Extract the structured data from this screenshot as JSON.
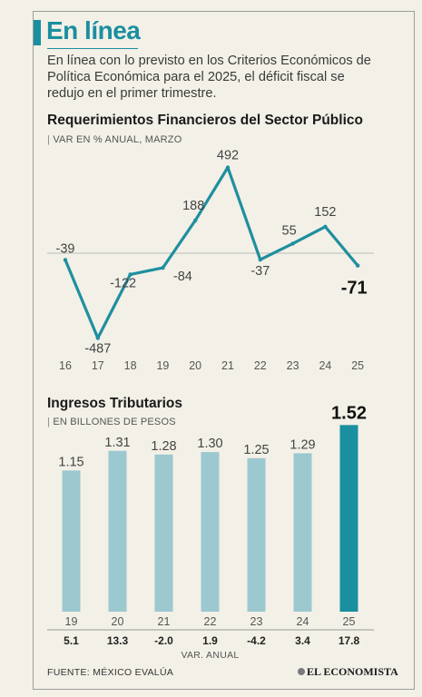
{
  "header": {
    "title": "En línea",
    "intro": "En línea con lo previsto en los Criterios Económicos de Política Económica para el 2025, el déficit fiscal se redujo en el primer trimestre."
  },
  "colors": {
    "accent": "#1a8fa0",
    "bar": "#9cc8d0",
    "bar_highlight": "#1a8fa0",
    "line": "#1f8f9e"
  },
  "chart_data": [
    {
      "type": "line",
      "title": "Requerimientos Financieros del Sector Público",
      "subtitle": "VAR EN % ANUAL, MARZO",
      "categories": [
        "16",
        "17",
        "18",
        "19",
        "20",
        "21",
        "22",
        "23",
        "24",
        "25"
      ],
      "values": [
        -39,
        -487,
        -122,
        -84,
        188,
        492,
        -37,
        55,
        152,
        -71
      ],
      "labels": [
        "-39",
        "-487",
        "-122",
        "-84",
        "188",
        "492",
        "-37",
        "55",
        "152",
        "-71"
      ],
      "highlight_index": 9,
      "baseline": 0
    },
    {
      "type": "bar",
      "title": "Ingresos Tributarios",
      "subtitle": "EN BILLONES DE PESOS",
      "categories": [
        "19",
        "20",
        "21",
        "22",
        "23",
        "24",
        "25"
      ],
      "values": [
        1.15,
        1.31,
        1.28,
        1.3,
        1.25,
        1.29,
        1.52
      ],
      "labels": [
        "1.15",
        "1.31",
        "1.28",
        "1.30",
        "1.25",
        "1.29",
        "1.52"
      ],
      "highlight_index": 6,
      "secondary_row": {
        "label": "VAR. ANUAL",
        "values": [
          "5.1",
          "13.3",
          "-2.0",
          "1.9",
          "-4.2",
          "3.4",
          "17.8"
        ]
      }
    }
  ],
  "footer": {
    "source": "FUENTE: MÉXICO EVALÚA",
    "brand": "EL ECONOMISTA"
  }
}
